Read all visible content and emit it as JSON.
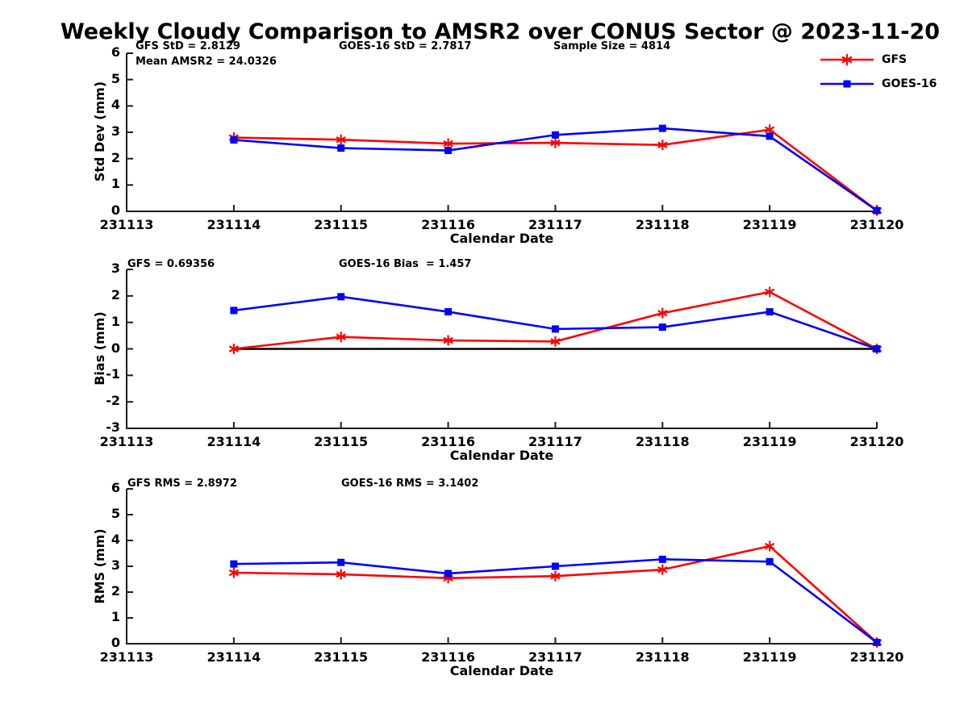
{
  "title": "Weekly Cloudy Comparison to AMSR2 over CONUS Sector @ 2023-11-20",
  "colors": {
    "gfs": "#ff0000",
    "goes16": "#0000ff",
    "axis": "#1c1c1c",
    "zero_line": "#000000"
  },
  "legend": {
    "entries": [
      {
        "label": "GFS",
        "color": "#ff0000",
        "marker": "asterisk"
      },
      {
        "label": "GOES-16",
        "color": "#0000ff",
        "marker": "square"
      }
    ]
  },
  "x_categories": [
    "231113",
    "231114",
    "231115",
    "231116",
    "231117",
    "231118",
    "231119",
    "231120"
  ],
  "chart_data": [
    {
      "type": "line",
      "ylabel": "Std Dev (mm)",
      "xlabel": "Calendar Date",
      "ylim": [
        0,
        6
      ],
      "yticks": [
        0,
        1,
        2,
        3,
        4,
        5,
        6
      ],
      "x": [
        "231114",
        "231115",
        "231116",
        "231117",
        "231118",
        "231119",
        "231120"
      ],
      "annotations": [
        "GFS StD = 2.8129",
        "Mean AMSR2 = 24.0326",
        "GOES-16 StD = 2.7817",
        "Sample Size = 4814"
      ],
      "zero_line": false,
      "series": [
        {
          "name": "GFS",
          "color": "#ff0000",
          "marker": "asterisk",
          "values": [
            2.8,
            2.72,
            2.57,
            2.6,
            2.52,
            3.1,
            0.03
          ]
        },
        {
          "name": "GOES-16",
          "color": "#0000ff",
          "marker": "square",
          "values": [
            2.71,
            2.4,
            2.31,
            2.9,
            3.15,
            2.85,
            0.03
          ]
        }
      ]
    },
    {
      "type": "line",
      "ylabel": "Bias (mm)",
      "xlabel": "Calendar Date",
      "ylim": [
        -3,
        3
      ],
      "yticks": [
        -3,
        -2,
        -1,
        0,
        1,
        2,
        3
      ],
      "x": [
        "231114",
        "231115",
        "231116",
        "231117",
        "231118",
        "231119",
        "231120"
      ],
      "annotations": [
        "GFS = 0.69356",
        "GOES-16 Bias  = 1.457"
      ],
      "zero_line": true,
      "series": [
        {
          "name": "GFS",
          "color": "#ff0000",
          "marker": "asterisk",
          "values": [
            0.0,
            0.45,
            0.32,
            0.28,
            1.35,
            2.15,
            0.0
          ]
        },
        {
          "name": "GOES-16",
          "color": "#0000ff",
          "marker": "square",
          "values": [
            1.45,
            1.97,
            1.4,
            0.75,
            0.82,
            1.4,
            0.0
          ]
        }
      ]
    },
    {
      "type": "line",
      "ylabel": "RMS (mm)",
      "xlabel": "Calendar Date",
      "ylim": [
        0,
        6
      ],
      "yticks": [
        0,
        1,
        2,
        3,
        4,
        5,
        6
      ],
      "x": [
        "231114",
        "231115",
        "231116",
        "231117",
        "231118",
        "231119",
        "231120"
      ],
      "annotations": [
        "GFS RMS = 2.8972",
        "GOES-16 RMS = 3.1402"
      ],
      "zero_line": false,
      "series": [
        {
          "name": "GFS",
          "color": "#ff0000",
          "marker": "asterisk",
          "values": [
            2.75,
            2.69,
            2.54,
            2.62,
            2.87,
            3.78,
            0.05
          ]
        },
        {
          "name": "GOES-16",
          "color": "#0000ff",
          "marker": "square",
          "values": [
            3.09,
            3.15,
            2.72,
            3.0,
            3.27,
            3.18,
            0.05
          ]
        }
      ]
    }
  ]
}
